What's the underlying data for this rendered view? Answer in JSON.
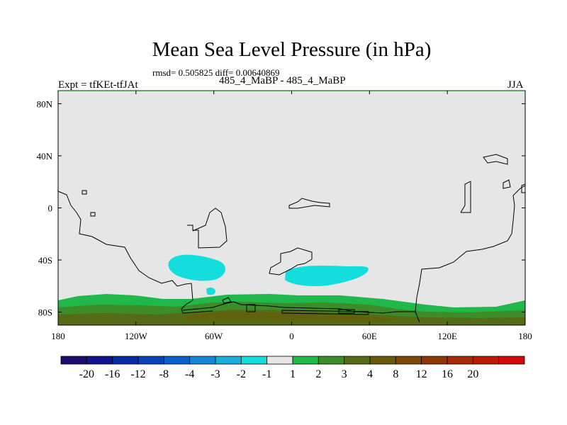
{
  "chart_data": {
    "type": "heatmap",
    "title": "Mean Sea Level Pressure (in hPa)",
    "stats_text": "rmsd= 0.505825 diff= 0.00640869",
    "left_label": "Expt = tfKEt-tfJAt",
    "center_label": "485_4_MaBP - 485_4_MaBP",
    "right_label": "JJA",
    "x_ticks": [
      "180",
      "120W",
      "60W",
      "0",
      "60E",
      "120E",
      "180"
    ],
    "x_tick_values": [
      -180,
      -120,
      -60,
      0,
      60,
      120,
      180
    ],
    "y_ticks": [
      "80N",
      "40N",
      "0",
      "40S",
      "80S"
    ],
    "y_tick_values": [
      80,
      40,
      0,
      -40,
      -80
    ],
    "xlim": [
      -180,
      180
    ],
    "ylim": [
      -90,
      90
    ],
    "colorbar": {
      "colors": [
        "#1d0a6e",
        "#10138a",
        "#0a2aa3",
        "#0a42b8",
        "#0a5fc8",
        "#1288d5",
        "#1aaedf",
        "#14dddd",
        "#e6e6e6",
        "#20b84a",
        "#3c8c2a",
        "#556b15",
        "#6b5a0a",
        "#7d4808",
        "#8e3805",
        "#a52a05",
        "#bd1a05",
        "#d40a0a"
      ],
      "labels": [
        "-20",
        "-16",
        "-12",
        "-8",
        "-4",
        "-3",
        "-2",
        "-1",
        "1",
        "2",
        "3",
        "4",
        "8",
        "12",
        "16",
        "20"
      ]
    },
    "fields": {
      "background": "#e6e6e6",
      "negative_anomaly_color": "#14dddd",
      "positive_band_colors": [
        "#20b84a",
        "#3c8c2a",
        "#556b15",
        "#6b5a0a"
      ]
    }
  }
}
